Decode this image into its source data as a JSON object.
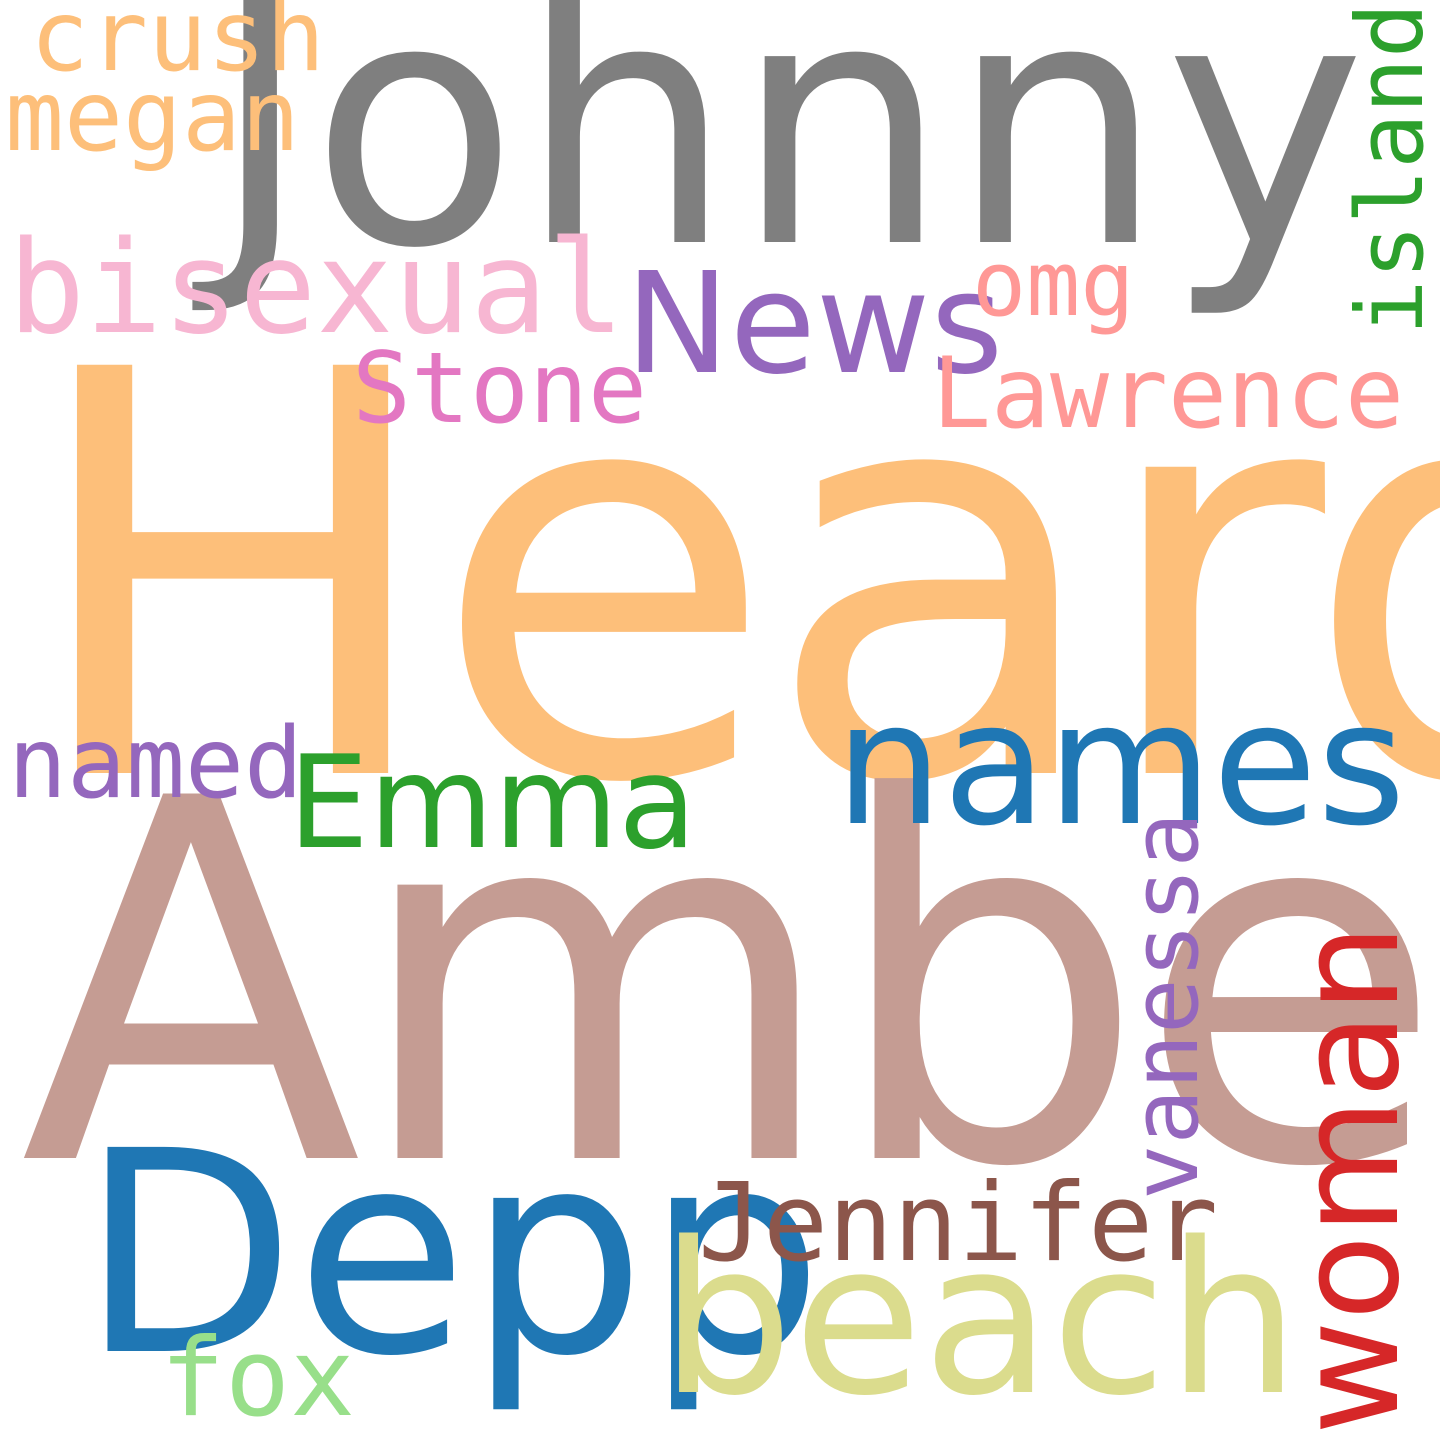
{
  "words": {
    "heard": {
      "text": "Heard",
      "color": "#fdbf7a"
    },
    "amber": {
      "text": "Amber",
      "color": "#c59c93"
    },
    "johnny": {
      "text": "Johnny",
      "color": "#7f7f7f"
    },
    "depp": {
      "text": "Depp",
      "color": "#1f77b4"
    },
    "beach": {
      "text": "beach",
      "color": "#dbdc8d"
    },
    "names": {
      "text": "names",
      "color": "#1f77b4"
    },
    "bisexual": {
      "text": "bisexual",
      "color": "#f7b6d2"
    },
    "news": {
      "text": "News",
      "color": "#9467bd"
    },
    "emma": {
      "text": "Emma",
      "color": "#2ca02c"
    },
    "jennifer": {
      "text": "Jennifer",
      "color": "#8c564b"
    },
    "lawrence": {
      "text": "Lawrence",
      "color": "#ff9896"
    },
    "stone": {
      "text": "Stone",
      "color": "#e377c2"
    },
    "named": {
      "text": "named",
      "color": "#9467bd"
    },
    "omg": {
      "text": "omg",
      "color": "#ff9896"
    },
    "crush": {
      "text": "crush",
      "color": "#fdbf7a"
    },
    "megan": {
      "text": "megan",
      "color": "#fdbf7a"
    },
    "fox": {
      "text": "fox",
      "color": "#98df8a"
    },
    "island": {
      "text": "island",
      "color": "#2ca02c"
    },
    "vanessa": {
      "text": "vanessa",
      "color": "#9467bd"
    },
    "woman": {
      "text": "woman",
      "color": "#d62728"
    }
  }
}
